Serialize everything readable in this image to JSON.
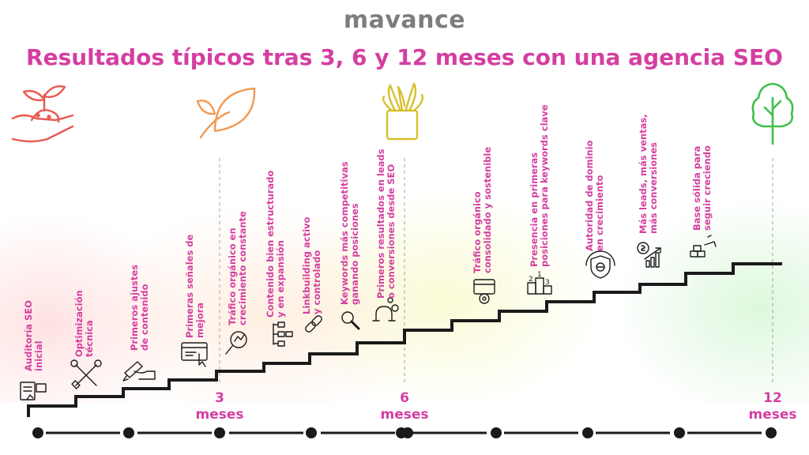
{
  "brand": "mavance",
  "title": "Resultados típicos tras 3, 6 y 12 meses con una agencia SEO",
  "colors": {
    "accent": "#d43fa0",
    "brand_grey": "#7d7d7d",
    "stair": "#1a1a1a"
  },
  "stage_icons": [
    "sprout-in-hand-icon",
    "leaf-icon",
    "potted-plant-icon",
    "tree-icon"
  ],
  "milestones": [
    {
      "number": "3",
      "unit": "meses"
    },
    {
      "number": "6",
      "unit": "meses"
    },
    {
      "number": "12",
      "unit": "meses"
    }
  ],
  "steps": [
    {
      "line1": "Auditoría SEO",
      "line2": "inicial",
      "icon": "audit-report-icon"
    },
    {
      "line1": "Optimización",
      "line2": "técnica",
      "icon": "tools-icon"
    },
    {
      "line1": "Primeros ajustes",
      "line2": "de contenido",
      "icon": "writing-hand-icon"
    },
    {
      "line1": "Primeras señales de",
      "line2": "mejora",
      "icon": "web-click-icon"
    },
    {
      "line1": "Tráfico orgánico en",
      "line2": "crecimiento constante",
      "icon": "search-analytics-icon"
    },
    {
      "line1": "Contenido bien estructurado",
      "line2": "y en expansión",
      "icon": "structure-icon"
    },
    {
      "line1": "Linkbuilding activo",
      "line2": "y controlado",
      "icon": "link-icon"
    },
    {
      "line1": "Keywords más competitivas",
      "line2": "ganando posiciones",
      "icon": "magnifier-icon"
    },
    {
      "line1": "Primeros resultados en leads",
      "line2": "o conversiones desde SEO",
      "icon": "magnet-icon"
    },
    {
      "line1": "Tráfico orgánico",
      "line2": "consolidado y sostenible",
      "icon": "web-traffic-icon"
    },
    {
      "line1": "Presencia en primeras",
      "line2": "posiciones para keywords clave",
      "icon": "podium-icon"
    },
    {
      "line1": "Autoridad de dominio",
      "line2": "en crecimiento",
      "icon": "shield-globe-icon"
    },
    {
      "line1": "Más leads, más ventas,",
      "line2": "más conversiones",
      "icon": "growth-chart-icon"
    },
    {
      "line1": "Base sólida para",
      "line2": "seguir creciendo",
      "icon": "building-blocks-icon"
    }
  ]
}
